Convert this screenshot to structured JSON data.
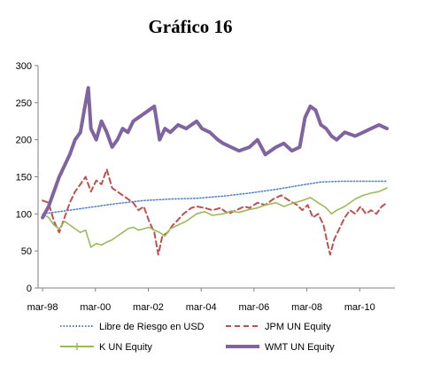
{
  "chart_data": {
    "type": "line",
    "title": "Gráfico 16",
    "xlabel": "",
    "ylabel": "",
    "ylim": [
      0,
      300
    ],
    "yticks": [
      0,
      50,
      100,
      150,
      200,
      250,
      300
    ],
    "xlim": [
      1998.0,
      2011.5
    ],
    "xtick_labels": [
      "mar-98",
      "mar-00",
      "mar-02",
      "mar-04",
      "mar-06",
      "mar-08",
      "mar-10"
    ],
    "xtick_years": [
      1998.17,
      2000.17,
      2002.17,
      2004.17,
      2006.17,
      2008.17,
      2010.17
    ],
    "grid": false,
    "legend_position": "bottom",
    "colors": {
      "rf": "#4f81bd",
      "jpm": "#c0504d",
      "k": "#9bbb59",
      "wmt": "#8064a2"
    },
    "series": [
      {
        "name": "Libre de Riesgo en USD",
        "style": "dotted",
        "x": [
          1998.17,
          1999.0,
          2000.0,
          2001.0,
          2002.0,
          2003.0,
          2004.0,
          2005.0,
          2006.0,
          2007.0,
          2008.0,
          2008.7,
          2009.5,
          2010.5,
          2011.2
        ],
        "values": [
          100,
          104,
          109,
          114,
          118,
          120,
          121,
          124,
          128,
          133,
          139,
          143,
          144,
          144,
          144
        ]
      },
      {
        "name": "JPM UN Equity",
        "style": "dashed",
        "x": [
          1998.17,
          1998.4,
          1998.6,
          1998.8,
          1999.0,
          1999.2,
          1999.4,
          1999.6,
          1999.8,
          2000.0,
          2000.2,
          2000.4,
          2000.6,
          2000.8,
          2001.0,
          2001.2,
          2001.4,
          2001.6,
          2001.8,
          2002.0,
          2002.2,
          2002.4,
          2002.55,
          2002.7,
          2002.9,
          2003.1,
          2003.3,
          2003.5,
          2003.8,
          2004.0,
          2004.3,
          2004.6,
          2004.9,
          2005.2,
          2005.5,
          2005.8,
          2006.0,
          2006.3,
          2006.6,
          2006.9,
          2007.2,
          2007.5,
          2007.8,
          2008.0,
          2008.2,
          2008.4,
          2008.6,
          2008.8,
          2008.95,
          2009.05,
          2009.2,
          2009.4,
          2009.6,
          2009.8,
          2010.0,
          2010.2,
          2010.4,
          2010.6,
          2010.8,
          2011.0,
          2011.2
        ],
        "values": [
          118,
          115,
          90,
          75,
          95,
          115,
          130,
          140,
          150,
          130,
          145,
          140,
          160,
          135,
          130,
          125,
          120,
          115,
          105,
          110,
          90,
          75,
          45,
          70,
          75,
          85,
          92,
          100,
          108,
          110,
          108,
          105,
          108,
          100,
          105,
          110,
          108,
          115,
          112,
          120,
          125,
          118,
          112,
          105,
          112,
          95,
          100,
          85,
          60,
          45,
          65,
          80,
          95,
          105,
          100,
          110,
          100,
          105,
          100,
          110,
          115
        ]
      },
      {
        "name": "K UN Equity",
        "style": "solid",
        "x": [
          1998.17,
          1998.4,
          1998.6,
          1998.8,
          1999.0,
          1999.2,
          1999.4,
          1999.6,
          1999.8,
          2000.0,
          2000.2,
          2000.4,
          2000.6,
          2000.8,
          2001.0,
          2001.2,
          2001.4,
          2001.6,
          2001.8,
          2002.0,
          2002.2,
          2002.4,
          2002.6,
          2002.8,
          2003.0,
          2003.3,
          2003.6,
          2004.0,
          2004.3,
          2004.6,
          2005.0,
          2005.3,
          2005.6,
          2006.0,
          2006.3,
          2006.6,
          2007.0,
          2007.3,
          2007.6,
          2008.0,
          2008.3,
          2008.6,
          2008.9,
          2009.1,
          2009.3,
          2009.6,
          2010.0,
          2010.3,
          2010.6,
          2010.9,
          2011.2
        ],
        "values": [
          100,
          95,
          85,
          80,
          90,
          85,
          80,
          75,
          78,
          55,
          60,
          58,
          62,
          65,
          70,
          75,
          80,
          82,
          78,
          80,
          82,
          78,
          75,
          70,
          80,
          85,
          90,
          100,
          103,
          98,
          100,
          104,
          102,
          106,
          108,
          112,
          115,
          110,
          114,
          118,
          122,
          115,
          108,
          100,
          105,
          110,
          120,
          125,
          128,
          130,
          135
        ]
      },
      {
        "name": "WMT UN Equity",
        "style": "solid",
        "x": [
          1998.17,
          1998.4,
          1998.6,
          1998.8,
          1999.0,
          1999.2,
          1999.4,
          1999.6,
          1999.75,
          1999.9,
          2000.0,
          2000.2,
          2000.4,
          2000.6,
          2000.8,
          2001.0,
          2001.2,
          2001.4,
          2001.6,
          2001.8,
          2002.0,
          2002.2,
          2002.4,
          2002.6,
          2002.8,
          2003.0,
          2003.3,
          2003.6,
          2004.0,
          2004.2,
          2004.5,
          2004.8,
          2005.0,
          2005.3,
          2005.6,
          2006.0,
          2006.3,
          2006.6,
          2007.0,
          2007.3,
          2007.6,
          2007.9,
          2008.1,
          2008.3,
          2008.5,
          2008.7,
          2008.9,
          2009.1,
          2009.3,
          2009.6,
          2010.0,
          2010.3,
          2010.6,
          2010.9,
          2011.2
        ],
        "values": [
          95,
          110,
          130,
          150,
          165,
          180,
          200,
          210,
          240,
          270,
          215,
          200,
          225,
          210,
          190,
          200,
          215,
          210,
          225,
          230,
          235,
          240,
          245,
          200,
          215,
          210,
          220,
          215,
          225,
          215,
          210,
          200,
          195,
          190,
          185,
          190,
          200,
          180,
          190,
          195,
          185,
          190,
          230,
          245,
          240,
          220,
          215,
          205,
          200,
          210,
          205,
          210,
          215,
          220,
          215
        ]
      }
    ]
  }
}
